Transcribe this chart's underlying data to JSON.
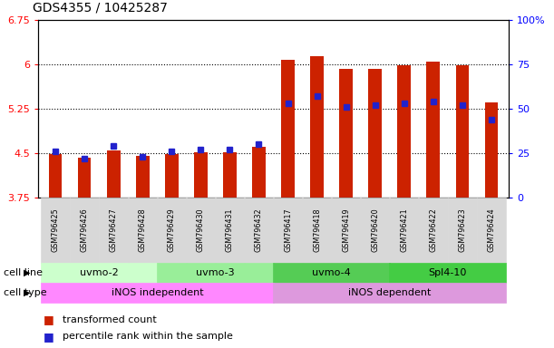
{
  "title": "GDS4355 / 10425287",
  "samples": [
    "GSM796425",
    "GSM796426",
    "GSM796427",
    "GSM796428",
    "GSM796429",
    "GSM796430",
    "GSM796431",
    "GSM796432",
    "GSM796417",
    "GSM796418",
    "GSM796419",
    "GSM796420",
    "GSM796421",
    "GSM796422",
    "GSM796423",
    "GSM796424"
  ],
  "transformed_count": [
    4.49,
    4.42,
    4.55,
    4.46,
    4.49,
    4.52,
    4.52,
    4.6,
    6.07,
    6.14,
    5.92,
    5.93,
    5.99,
    6.05,
    5.99,
    5.35
  ],
  "percentile_rank": [
    26,
    22,
    29,
    23,
    26,
    27,
    27,
    30,
    53,
    57,
    51,
    52,
    53,
    54,
    52,
    44
  ],
  "ylim_left": [
    3.75,
    6.75
  ],
  "ylim_right": [
    0,
    100
  ],
  "yticks_left": [
    3.75,
    4.5,
    5.25,
    6.0,
    6.75
  ],
  "yticks_right": [
    0,
    25,
    50,
    75,
    100
  ],
  "ytick_labels_left": [
    "3.75",
    "4.5",
    "5.25",
    "6",
    "6.75"
  ],
  "ytick_labels_right": [
    "0",
    "25",
    "50",
    "75",
    "100%"
  ],
  "grid_lines": [
    4.5,
    5.25,
    6.0
  ],
  "cell_lines": [
    {
      "label": "uvmo-2",
      "start": 0,
      "end": 3,
      "color": "#ccffcc"
    },
    {
      "label": "uvmo-3",
      "start": 4,
      "end": 7,
      "color": "#99ee99"
    },
    {
      "label": "uvmo-4",
      "start": 8,
      "end": 11,
      "color": "#55cc55"
    },
    {
      "label": "Spl4-10",
      "start": 12,
      "end": 15,
      "color": "#44cc44"
    }
  ],
  "cell_types": [
    {
      "label": "iNOS independent",
      "start": 0,
      "end": 7,
      "color": "#ff88ff"
    },
    {
      "label": "iNOS dependent",
      "start": 8,
      "end": 15,
      "color": "#dd99dd"
    }
  ],
  "bar_color": "#cc2200",
  "dot_color": "#2222cc",
  "bar_width": 0.45,
  "xlabel_box_color": "#d8d8d8",
  "label_transformed": "transformed count",
  "label_percentile": "percentile rank within the sample",
  "cell_line_label": "cell line",
  "cell_type_label": "cell type"
}
